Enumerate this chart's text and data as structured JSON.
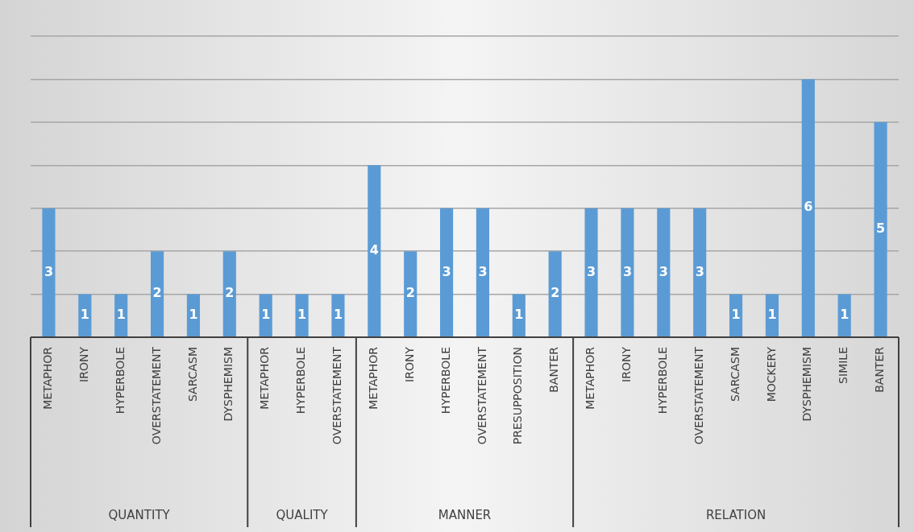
{
  "chart_data": {
    "type": "bar",
    "categories": [
      "METAPHOR",
      "IRONY",
      "HYPERBOLE",
      "OVERSTATEMENT",
      "SARCASM",
      "DYSPHEMISM",
      "METAPHOR",
      "HYPERBOLE",
      "OVERSTATEMENT",
      "METAPHOR",
      "IRONY",
      "HYPERBOLE",
      "OVERSTATEMENT",
      "PRESUPPOSITION",
      "BANTER",
      "METAPHOR",
      "IRONY",
      "HYPERBOLE",
      "OVERSTATEMENT",
      "SARCASM",
      "MOCKERY",
      "DYSPHEMISM",
      "SIMILE",
      "BANTER"
    ],
    "values": [
      3,
      1,
      1,
      2,
      1,
      2,
      1,
      1,
      1,
      4,
      2,
      3,
      3,
      1,
      2,
      3,
      3,
      3,
      3,
      1,
      1,
      6,
      1,
      5
    ],
    "color": "#5b9bd5",
    "ylim": [
      0,
      7
    ],
    "yticks": [
      {
        "value": 0,
        "label": null
      },
      {
        "value": 1,
        "label": null
      },
      {
        "value": 2,
        "label": null
      },
      {
        "value": 3,
        "label": null
      },
      {
        "value": 4,
        "label": null
      },
      {
        "value": 5,
        "label": null
      },
      {
        "value": 6,
        "label": null
      },
      {
        "value": 7,
        "label": null
      }
    ],
    "grid": "y",
    "data_labels": true,
    "legend": false,
    "annotations": [
      "QUANTITY",
      "QUALITY",
      "MANNER",
      "RELATION"
    ]
  }
}
